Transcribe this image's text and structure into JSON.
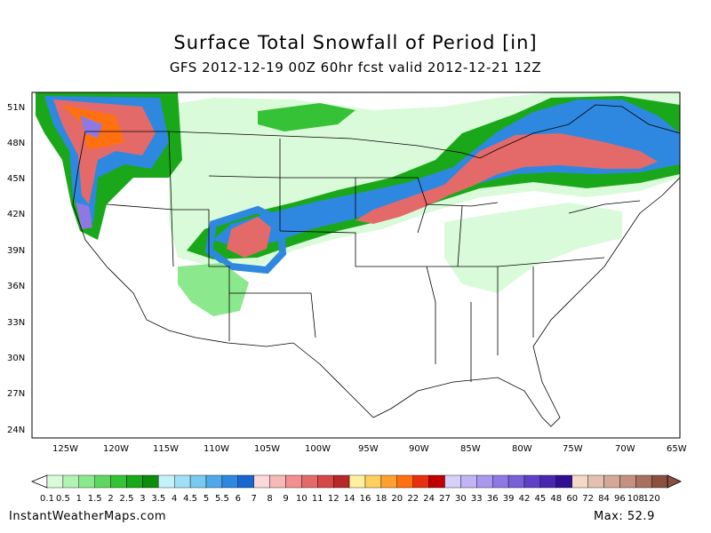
{
  "title": "Surface Total Snowfall of Period [in]",
  "subtitle": "GFS 2012-12-19 00Z 60hr fcst valid 2012-12-21 12Z",
  "lat_labels": [
    "51N",
    "48N",
    "45N",
    "42N",
    "39N",
    "36N",
    "33N",
    "30N",
    "27N",
    "24N"
  ],
  "lon_labels": [
    "125W",
    "120W",
    "115W",
    "110W",
    "105W",
    "100W",
    "95W",
    "90W",
    "85W",
    "80W",
    "75W",
    "70W",
    "65W"
  ],
  "legend": {
    "labels": [
      "0.1",
      "0.5",
      "1",
      "1.5",
      "2",
      "2.5",
      "3",
      "3.5",
      "4",
      "4.5",
      "5",
      "5.5",
      "6",
      "7",
      "8",
      "9",
      "10",
      "11",
      "12",
      "14",
      "16",
      "18",
      "20",
      "22",
      "24",
      "27",
      "30",
      "33",
      "36",
      "39",
      "42",
      "45",
      "48",
      "60",
      "72",
      "84",
      "96",
      "108",
      "120"
    ],
    "colors": [
      "#d9fbd9",
      "#b2f2b2",
      "#8ce88c",
      "#5fd65f",
      "#36c236",
      "#1aa81a",
      "#0b8c0b",
      "#c8f0f8",
      "#a0e0f5",
      "#78c8f0",
      "#50a8ea",
      "#2e88e0",
      "#1a66d0",
      "#fcd8d8",
      "#f7b8b8",
      "#f09090",
      "#e46a6a",
      "#d44848",
      "#b82828",
      "#fff0a0",
      "#ffd060",
      "#ffa030",
      "#ff7010",
      "#e83010",
      "#c00000",
      "#d8d0f8",
      "#c0b4f4",
      "#a898ee",
      "#9078e4",
      "#7860d8",
      "#6040c8",
      "#4828b0",
      "#301090",
      "#f4d8c8",
      "#e4c0b0",
      "#d4a898",
      "#c49080",
      "#a87060",
      "#8a5040"
    ]
  },
  "footer": {
    "site": "InstantWeatherMaps.com",
    "max": "Max:  52.9"
  }
}
